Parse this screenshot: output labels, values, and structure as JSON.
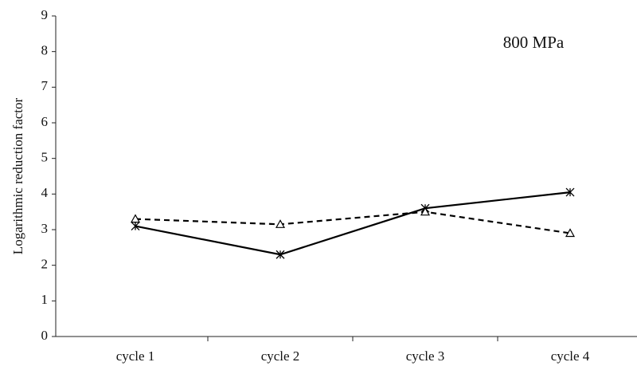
{
  "chart_data": {
    "type": "line",
    "annotation": "800 MPa",
    "y_label": "Logarithmic reduction factor",
    "categories": [
      "cycle 1",
      "cycle 2",
      "cycle 3",
      "cycle 4"
    ],
    "series": [
      {
        "color": "#000000",
        "dashed": false,
        "marker": "x",
        "values": [
          3.1,
          2.3,
          3.6,
          4.05
        ]
      },
      {
        "color": "#000000",
        "dashed": true,
        "marker": "triangle",
        "values": [
          3.3,
          3.15,
          3.5,
          2.9
        ]
      }
    ],
    "ylim": [
      0,
      9
    ],
    "yticks": [
      0,
      1,
      2,
      3,
      4,
      5,
      6,
      7,
      8,
      9
    ],
    "grid": false
  }
}
